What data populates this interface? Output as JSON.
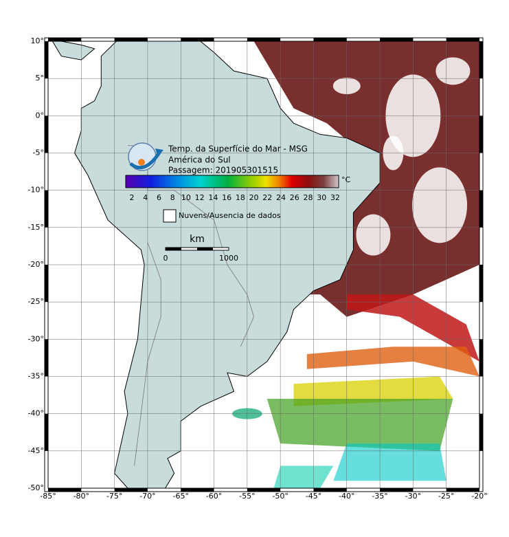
{
  "header": {
    "title": "Temp. da Superfície do Mar - MSG",
    "region": "América do Sul",
    "pass": "Passagem: 201905301515"
  },
  "colorbar": {
    "ticks": [
      "2",
      "4",
      "6",
      "8",
      "10",
      "12",
      "14",
      "16",
      "18",
      "20",
      "22",
      "24",
      "26",
      "28",
      "30",
      "32"
    ],
    "unit": "°C"
  },
  "legend": {
    "label": "Nuvens/Ausencia de dados"
  },
  "scale": {
    "unit": "km",
    "labels": [
      "0",
      "1000"
    ]
  },
  "axes": {
    "lon_ticks": [
      {
        "value": -85,
        "label": "-85°"
      },
      {
        "value": -80,
        "label": "-80°"
      },
      {
        "value": -75,
        "label": "-75°"
      },
      {
        "value": -70,
        "label": "-70°"
      },
      {
        "value": -65,
        "label": "-65°"
      },
      {
        "value": -60,
        "label": "-60°"
      },
      {
        "value": -55,
        "label": "-55°"
      },
      {
        "value": -50,
        "label": "-50°"
      },
      {
        "value": -45,
        "label": "-45°"
      },
      {
        "value": -40,
        "label": "-40°"
      },
      {
        "value": -35,
        "label": "-35°"
      },
      {
        "value": -30,
        "label": "-30°"
      },
      {
        "value": -25,
        "label": "-25°"
      },
      {
        "value": -20,
        "label": "-20°"
      }
    ],
    "lat_ticks": [
      {
        "value": 10,
        "label": "10°"
      },
      {
        "value": 5,
        "label": "5°"
      },
      {
        "value": 0,
        "label": "0°"
      },
      {
        "value": -5,
        "label": "-5°"
      },
      {
        "value": -10,
        "label": "-10°"
      },
      {
        "value": -15,
        "label": "-15°"
      },
      {
        "value": -20,
        "label": "-20°"
      },
      {
        "value": -25,
        "label": "-25°"
      },
      {
        "value": -30,
        "label": "-30°"
      },
      {
        "value": -35,
        "label": "-35°"
      },
      {
        "value": -40,
        "label": "-40°"
      },
      {
        "value": -45,
        "label": "-45°"
      },
      {
        "value": -50,
        "label": "-50°"
      }
    ]
  }
}
